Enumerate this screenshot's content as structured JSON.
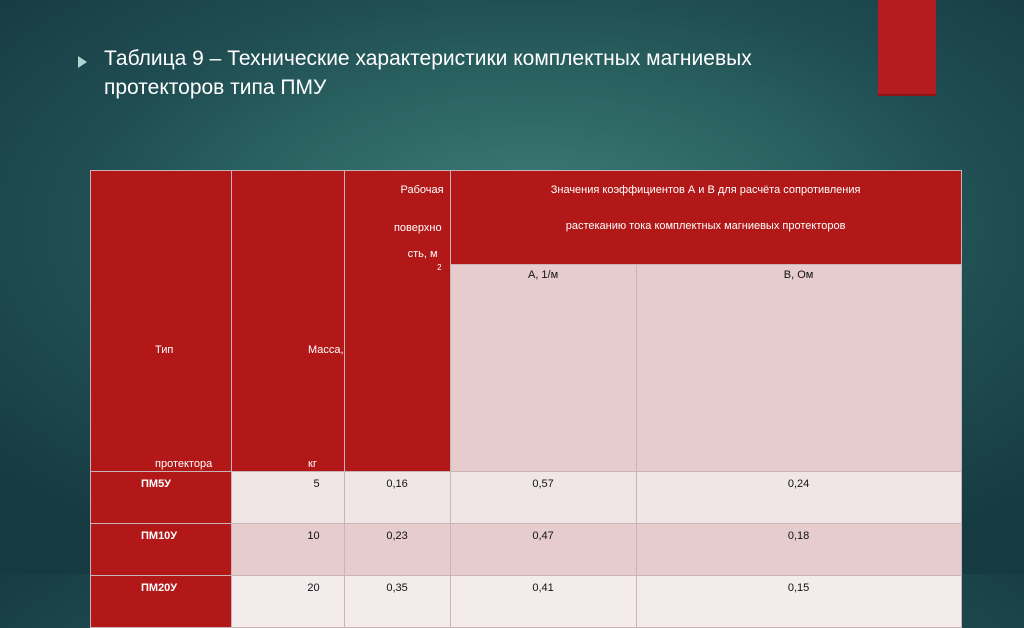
{
  "slide": {
    "title_line1": "Таблица 9 – Технические характеристики комплектных магниевых",
    "title_line2": "протекторов типа ПМУ"
  },
  "table": {
    "headers": {
      "type": "Тип протектора",
      "type_l1": "Тип",
      "type_l2": "протектора",
      "mass_l1": "Масса,",
      "mass_l2": "кг",
      "surface_l1": "Рабочая",
      "surface_l2": "поверхно",
      "surface_l3": "сть, м",
      "surface_sup": "2",
      "coef_l1": "Значения коэффициентов А и В для расчёта сопротивления",
      "coef_l2": "растеканию тока комплектных магниевых протекторов",
      "a": "А, 1/м",
      "b": "В, Ом"
    },
    "rows": [
      {
        "type": "ПМ5У",
        "mass": "5",
        "surface": "0,16",
        "a": "0,57",
        "b": "0,24"
      },
      {
        "type": "ПМ10У",
        "mass": "10",
        "surface": "0,23",
        "a": "0,47",
        "b": "0,18"
      },
      {
        "type": "ПМ20У",
        "mass": "20",
        "surface": "0,35",
        "a": "0,41",
        "b": "0,15"
      }
    ]
  },
  "colors": {
    "accent_red": "#b21818",
    "header_pink": "#e6cccd",
    "background_teal": "#2d6664"
  }
}
